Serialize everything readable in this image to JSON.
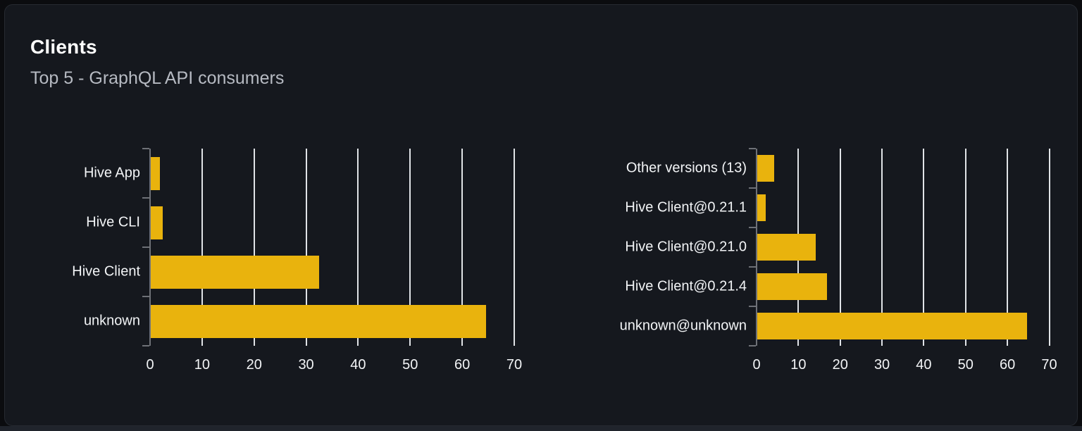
{
  "panel": {
    "title": "Clients",
    "subtitle": "Top 5 - GraphQL API consumers"
  },
  "colors": {
    "bar": "#e9b30d",
    "gridline": "#e0e3e7",
    "axis": "#6e7177",
    "tick_label": "#f2f4f6",
    "title": "#ffffff",
    "subtitle": "#b6bac2",
    "card_bg": "#15181e",
    "card_border": "#262a31",
    "page_bg": "#0b0c0f"
  },
  "chart_data": [
    {
      "type": "bar",
      "orientation": "horizontal",
      "title": "",
      "categories": [
        "Hive App",
        "Hive CLI",
        "Hive Client",
        "unknown"
      ],
      "category_order": "top-to-bottom",
      "values": [
        1.7,
        2.3,
        32.3,
        64.5
      ],
      "x_ticks": [
        0,
        10,
        20,
        30,
        40,
        50,
        60,
        70
      ],
      "xlim": [
        0,
        70
      ],
      "xlabel": "",
      "ylabel": "",
      "grid": true,
      "legend": false
    },
    {
      "type": "bar",
      "orientation": "horizontal",
      "title": "",
      "categories": [
        "Other versions (13)",
        "Hive Client@0.21.1",
        "Hive Client@0.21.0",
        "Hive Client@0.21.4",
        "unknown@unknown"
      ],
      "category_order": "top-to-bottom",
      "values": [
        4.1,
        2.0,
        13.9,
        16.6,
        64.5
      ],
      "x_ticks": [
        0,
        10,
        20,
        30,
        40,
        50,
        60,
        70
      ],
      "xlim": [
        0,
        70
      ],
      "xlabel": "",
      "ylabel": "",
      "grid": true,
      "legend": false
    }
  ]
}
